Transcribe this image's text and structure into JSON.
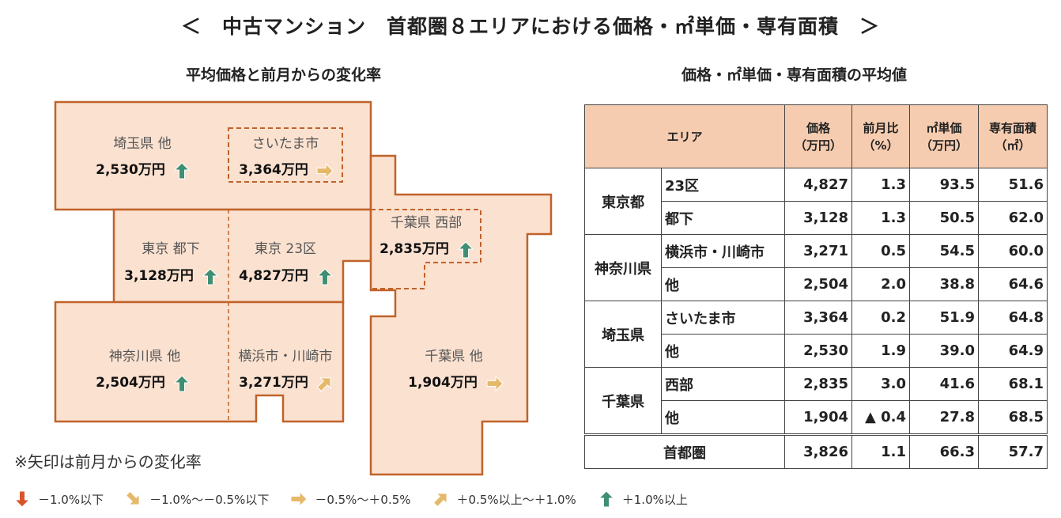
{
  "title": "＜　中古マンション　首都圏８エリアにおける価格・㎡単価・専有面積　＞",
  "map": {
    "heading": "平均価格と前月からの変化率",
    "regions": [
      {
        "name": "埼玉県 他",
        "value": "2,530万円",
        "arrow": "up"
      },
      {
        "name": "さいたま市",
        "value": "3,364万円",
        "arrow": "flat"
      },
      {
        "name": "東京 都下",
        "value": "3,128万円",
        "arrow": "up"
      },
      {
        "name": "東京 23区",
        "value": "4,827万円",
        "arrow": "up"
      },
      {
        "name": "千葉県 西部",
        "value": "2,835万円",
        "arrow": "up"
      },
      {
        "name": "神奈川県 他",
        "value": "2,504万円",
        "arrow": "up"
      },
      {
        "name": "横浜市・川崎市",
        "value": "3,271万円",
        "arrow": "slight-up"
      },
      {
        "name": "千葉県 他",
        "value": "1,904万円",
        "arrow": "flat"
      }
    ]
  },
  "table": {
    "heading": "価格・㎡単価・専有面積の平均値",
    "headers": {
      "area": "エリア",
      "price": "価格",
      "price_unit": "（万円）",
      "mom": "前月比",
      "mom_unit": "（%）",
      "unit_price": "㎡単価",
      "unit_price_unit": "（万円）",
      "floor_area": "専有面積",
      "floor_area_unit": "（㎡）"
    },
    "groups": [
      {
        "pref": "東京都",
        "rows": [
          {
            "area": "23区",
            "price": "4,827",
            "mom": "1.3",
            "unit_price": "93.5",
            "floor_area": "51.6"
          },
          {
            "area": "都下",
            "price": "3,128",
            "mom": "1.3",
            "unit_price": "50.5",
            "floor_area": "62.0"
          }
        ]
      },
      {
        "pref": "神奈川県",
        "rows": [
          {
            "area": "横浜市・川崎市",
            "price": "3,271",
            "mom": "0.5",
            "unit_price": "54.5",
            "floor_area": "60.0"
          },
          {
            "area": "他",
            "price": "2,504",
            "mom": "2.0",
            "unit_price": "38.8",
            "floor_area": "64.6"
          }
        ]
      },
      {
        "pref": "埼玉県",
        "rows": [
          {
            "area": "さいたま市",
            "price": "3,364",
            "mom": "0.2",
            "unit_price": "51.9",
            "floor_area": "64.8"
          },
          {
            "area": "他",
            "price": "2,530",
            "mom": "1.9",
            "unit_price": "39.0",
            "floor_area": "64.9"
          }
        ]
      },
      {
        "pref": "千葉県",
        "rows": [
          {
            "area": "西部",
            "price": "2,835",
            "mom": "3.0",
            "unit_price": "41.6",
            "floor_area": "68.1"
          },
          {
            "area": "他",
            "price": "1,904",
            "mom": "▲ 0.4",
            "unit_price": "27.8",
            "floor_area": "68.5"
          }
        ]
      }
    ],
    "total": {
      "area": "首都圏",
      "price": "3,826",
      "mom": "1.1",
      "unit_price": "66.3",
      "floor_area": "57.7"
    }
  },
  "note": "※矢印は前月からの変化率",
  "legend": [
    {
      "arrow": "down",
      "label": "－1.0%以下"
    },
    {
      "arrow": "slight-down",
      "label": "－1.0%～－0.5%以下"
    },
    {
      "arrow": "flat",
      "label": "－0.5%～＋0.5%"
    },
    {
      "arrow": "slight-up",
      "label": "＋0.5%以上～＋1.0%"
    },
    {
      "arrow": "up",
      "label": "＋1.0%以上"
    }
  ],
  "colors": {
    "region_fill": "#fbe1d0",
    "region_border": "#c0622a",
    "header_fill": "#f6ccb0",
    "arrow_up": "#3f8f72",
    "arrow_flat": "#e6b96a",
    "arrow_down": "#d9542b"
  },
  "chart_data": {
    "type": "table",
    "title": "中古マンション　首都圏８エリアにおける価格・㎡単価・専有面積",
    "columns": [
      "エリア",
      "価格（万円）",
      "前月比（%）",
      "㎡単価（万円）",
      "専有面積（㎡）"
    ],
    "rows": [
      [
        "東京都 23区",
        4827,
        1.3,
        93.5,
        51.6
      ],
      [
        "東京都 都下",
        3128,
        1.3,
        50.5,
        62.0
      ],
      [
        "神奈川県 横浜市・川崎市",
        3271,
        0.5,
        54.5,
        60.0
      ],
      [
        "神奈川県 他",
        2504,
        2.0,
        38.8,
        64.6
      ],
      [
        "埼玉県 さいたま市",
        3364,
        0.2,
        51.9,
        64.8
      ],
      [
        "埼玉県 他",
        2530,
        1.9,
        39.0,
        64.9
      ],
      [
        "千葉県 西部",
        2835,
        3.0,
        41.6,
        68.1
      ],
      [
        "千葉県 他",
        1904,
        -0.4,
        27.8,
        68.5
      ],
      [
        "首都圏",
        3826,
        1.1,
        66.3,
        57.7
      ]
    ]
  }
}
